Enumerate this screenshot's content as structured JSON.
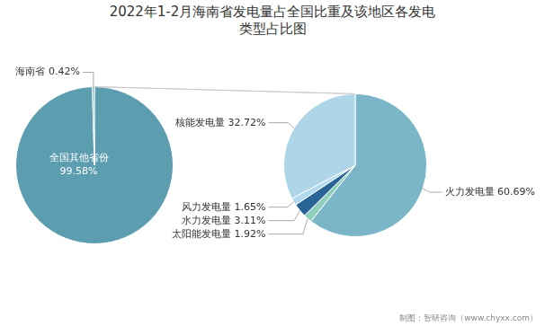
{
  "chart_data": [
    {
      "type": "pie",
      "title": [
        "2022年1-2月海南省发电量占全国比重及该地区各发电",
        "类型占比图"
      ],
      "categories": [
        "全国其他省份\n99.58%",
        "海南省 0.42%"
      ],
      "values": [
        99.58,
        0.42
      ],
      "colors": [
        "#5d9db0",
        "#6db0c3"
      ],
      "annotations": [
        "制图：智研咨询（www.chyxx.com）"
      ]
    },
    {
      "type": "pie",
      "categories": [
        "火力发电量 60.69%",
        "太阳能发电量 1.92%",
        "水力发电量 3.11%",
        "风力发电量 1.65%",
        "核能发电量 32.72%"
      ],
      "values": [
        60.69,
        1.92,
        3.11,
        1.65,
        32.72
      ],
      "colors": [
        "#7ab6c8",
        "#8ecfbe",
        "#2a6496",
        "#add8f0",
        "#aed6e8"
      ]
    }
  ]
}
